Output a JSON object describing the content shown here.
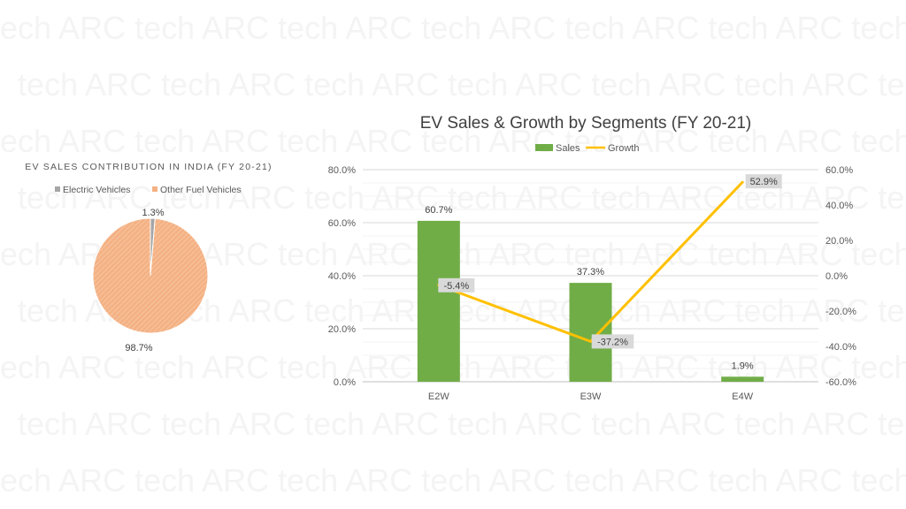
{
  "watermark": {
    "text": "tech ARC tech ARC tech ARC tech ARC tech ARC tech ARC tech ARC"
  },
  "chart_data": [
    {
      "type": "pie",
      "title": "EV SALES CONTRIBUTION IN INDIA (FY 20-21)",
      "legend_position": "top",
      "slices": [
        {
          "name": "Electric Vehicles",
          "value": 1.3,
          "label": "1.3%",
          "color": "#a6a6a6"
        },
        {
          "name": "Other Fuel Vehicles",
          "value": 98.7,
          "label": "98.7%",
          "color": "#f4b183"
        }
      ]
    },
    {
      "type": "bar",
      "title": "EV Sales & Growth by Segments (FY 20-21)",
      "legend_position": "top",
      "categories": [
        "E2W",
        "E3W",
        "E4W"
      ],
      "series": [
        {
          "name": "Sales",
          "type": "bar",
          "axis": "left",
          "color": "#70ad47",
          "values": [
            60.7,
            37.3,
            1.9
          ],
          "labels": [
            "60.7%",
            "37.3%",
            "1.9%"
          ]
        },
        {
          "name": "Growth",
          "type": "line",
          "axis": "right",
          "color": "#ffc000",
          "values": [
            -5.4,
            -37.2,
            52.9
          ],
          "labels": [
            "-5.4%",
            "-37.2%",
            "52.9%"
          ]
        }
      ],
      "y_left": {
        "min": 0,
        "max": 80,
        "ticks": [
          "0.0%",
          "20.0%",
          "40.0%",
          "60.0%",
          "80.0%"
        ]
      },
      "y_right": {
        "min": -60,
        "max": 60,
        "ticks": [
          "-60.0%",
          "-40.0%",
          "-20.0%",
          "0.0%",
          "20.0%",
          "40.0%",
          "60.0%"
        ]
      },
      "grid": true
    }
  ]
}
